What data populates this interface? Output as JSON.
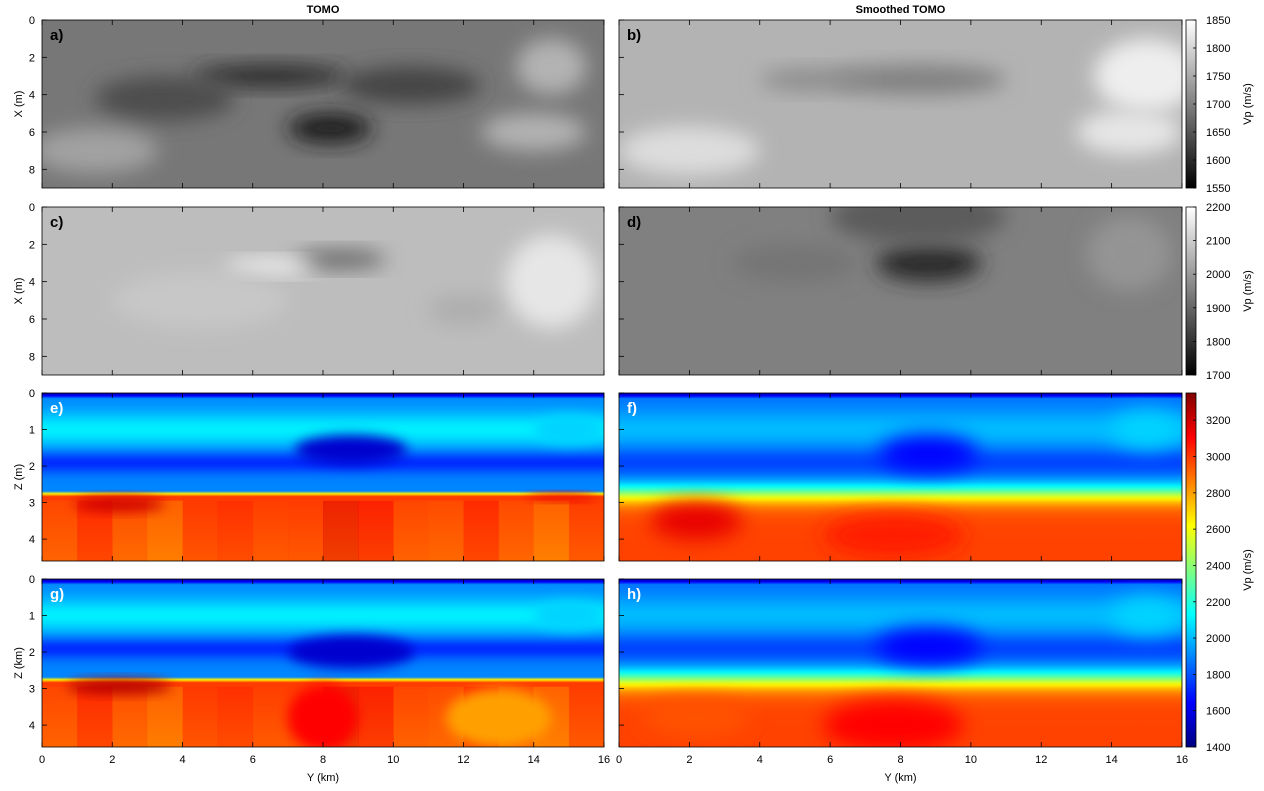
{
  "figure": {
    "col_titles": [
      "TOMO",
      "Smoothed TOMO"
    ]
  },
  "panels": [
    {
      "label": "a)",
      "ylabel": "X (m)",
      "yticks": [
        "0",
        "2",
        "4",
        "6",
        "8"
      ],
      "cmap": "gray",
      "blobs": [
        {
          "x": 6.5,
          "y": 3.0,
          "rx": 2.2,
          "ry": 0.6,
          "v": 1600
        },
        {
          "x": 8.2,
          "y": 5.8,
          "rx": 1.2,
          "ry": 0.8,
          "v": 1580
        },
        {
          "x": 3.5,
          "y": 4.2,
          "rx": 2.0,
          "ry": 1.2,
          "v": 1640
        },
        {
          "x": 10.5,
          "y": 3.5,
          "rx": 2.0,
          "ry": 1.0,
          "v": 1630
        },
        {
          "x": 14.5,
          "y": 2.5,
          "rx": 1.0,
          "ry": 1.5,
          "v": 1760
        },
        {
          "x": 1.5,
          "y": 7.0,
          "rx": 1.8,
          "ry": 1.2,
          "v": 1740
        },
        {
          "x": 14.0,
          "y": 6.0,
          "rx": 1.5,
          "ry": 1.0,
          "v": 1760
        }
      ],
      "base": 1690
    },
    {
      "label": "b)",
      "ylabel": "",
      "yticks": [],
      "cmap": "gray",
      "blobs": [
        {
          "x": 8.5,
          "y": 3.2,
          "rx": 2.5,
          "ry": 0.8,
          "v": 1700
        },
        {
          "x": 5.5,
          "y": 3.2,
          "rx": 1.5,
          "ry": 0.6,
          "v": 1715
        },
        {
          "x": 15.0,
          "y": 3.0,
          "rx": 1.5,
          "ry": 2.0,
          "v": 1830
        },
        {
          "x": 2.0,
          "y": 7.0,
          "rx": 2.0,
          "ry": 1.3,
          "v": 1810
        },
        {
          "x": 14.5,
          "y": 6.0,
          "rx": 1.5,
          "ry": 1.2,
          "v": 1820
        }
      ],
      "base": 1760
    },
    {
      "label": "c)",
      "ylabel": "X (m)",
      "yticks": [
        "0",
        "2",
        "4",
        "6",
        "8"
      ],
      "cmap": "gray2",
      "blobs": [
        {
          "x": 8.5,
          "y": 2.8,
          "rx": 1.3,
          "ry": 0.5,
          "v": 1900
        },
        {
          "x": 6.5,
          "y": 3.2,
          "rx": 1.3,
          "ry": 0.4,
          "v": 2180
        },
        {
          "x": 14.5,
          "y": 4.0,
          "rx": 1.3,
          "ry": 2.5,
          "v": 2150
        },
        {
          "x": 12.0,
          "y": 5.5,
          "rx": 1.0,
          "ry": 0.8,
          "v": 2040
        },
        {
          "x": 4.5,
          "y": 5.0,
          "rx": 2.5,
          "ry": 1.5,
          "v": 2090
        }
      ],
      "base": 2070
    },
    {
      "label": "d)",
      "ylabel": "",
      "yticks": [],
      "cmap": "gray2",
      "blobs": [
        {
          "x": 8.8,
          "y": 3.0,
          "rx": 1.5,
          "ry": 1.0,
          "v": 1780
        },
        {
          "x": 8.5,
          "y": 0.5,
          "rx": 2.5,
          "ry": 1.5,
          "v": 1880
        },
        {
          "x": 5.0,
          "y": 3.0,
          "rx": 1.8,
          "ry": 1.0,
          "v": 1930
        },
        {
          "x": 14.5,
          "y": 2.5,
          "rx": 1.2,
          "ry": 2.0,
          "v": 1990
        }
      ],
      "base": 1950
    },
    {
      "label": "e)",
      "ylabel": "Z (m)",
      "yticks": [
        "0",
        "1",
        "2",
        "3",
        "4"
      ],
      "cmap": "jet",
      "iface_sharp": true,
      "blobs": [
        {
          "x": 8.8,
          "y": 1.55,
          "rx": 1.6,
          "ry": 0.4,
          "v": 1550
        },
        {
          "x": 2.2,
          "y": 3.05,
          "rx": 1.3,
          "ry": 0.2,
          "v": 3200
        },
        {
          "x": 14.8,
          "y": 2.85,
          "rx": 1.0,
          "ry": 0.1,
          "v": 3150
        },
        {
          "x": 15.0,
          "y": 1.0,
          "rx": 1.0,
          "ry": 0.4,
          "v": 2050
        }
      ]
    },
    {
      "label": "f)",
      "ylabel": "",
      "yticks": [],
      "cmap": "jet",
      "iface_sharp": false,
      "blobs": [
        {
          "x": 8.8,
          "y": 1.65,
          "rx": 1.4,
          "ry": 0.5,
          "v": 1650
        },
        {
          "x": 2.2,
          "y": 3.5,
          "rx": 1.3,
          "ry": 0.5,
          "v": 3150
        },
        {
          "x": 7.8,
          "y": 3.9,
          "rx": 2.0,
          "ry": 0.6,
          "v": 3050
        },
        {
          "x": 15.0,
          "y": 1.0,
          "rx": 1.0,
          "ry": 0.5,
          "v": 2050
        }
      ]
    },
    {
      "label": "g)",
      "ylabel": "Z (km)",
      "yticks": [
        "0",
        "1",
        "2",
        "3",
        "4"
      ],
      "cmap": "jet",
      "iface_sharp": true,
      "blobs": [
        {
          "x": 8.8,
          "y": 2.0,
          "rx": 1.8,
          "ry": 0.45,
          "v": 1550
        },
        {
          "x": 2.2,
          "y": 2.95,
          "rx": 1.5,
          "ry": 0.2,
          "v": 3250
        },
        {
          "x": 8.0,
          "y": 3.8,
          "rx": 1.0,
          "ry": 0.9,
          "v": 3100
        },
        {
          "x": 15.0,
          "y": 1.0,
          "rx": 1.0,
          "ry": 0.4,
          "v": 2050
        },
        {
          "x": 13.0,
          "y": 3.8,
          "rx": 1.5,
          "ry": 0.8,
          "v": 2800
        }
      ]
    },
    {
      "label": "h)",
      "ylabel": "",
      "yticks": [],
      "cmap": "jet",
      "iface_sharp": false,
      "blobs": [
        {
          "x": 8.8,
          "y": 1.85,
          "rx": 1.5,
          "ry": 0.5,
          "v": 1650
        },
        {
          "x": 7.8,
          "y": 4.0,
          "rx": 2.0,
          "ry": 0.7,
          "v": 3100
        },
        {
          "x": 2.2,
          "y": 3.8,
          "rx": 1.5,
          "ry": 0.5,
          "v": 2950
        },
        {
          "x": 15.0,
          "y": 1.0,
          "rx": 1.0,
          "ry": 0.5,
          "v": 2050
        }
      ]
    }
  ],
  "colorbars": [
    {
      "label": "Vp (m/s)",
      "ticks": [
        "1850",
        "1800",
        "1750",
        "1700",
        "1650",
        "1600",
        "1550"
      ],
      "min": 1550,
      "max": 1850,
      "cmap": "gray"
    },
    {
      "label": "Vp (m/s)",
      "ticks": [
        "2200",
        "2100",
        "2000",
        "1900",
        "1800",
        "1700"
      ],
      "min": 1700,
      "max": 2200,
      "cmap": "gray2"
    },
    {
      "label": "Vp (m/s)",
      "ticks": [
        "3200",
        "3000",
        "2800",
        "2600",
        "2400",
        "2200",
        "2000",
        "1800",
        "1600",
        "1400"
      ],
      "min": 1400,
      "max": 3350,
      "cmap": "jet"
    }
  ],
  "x_axis": {
    "label": "Y (km)",
    "ticks": [
      "0",
      "2",
      "4",
      "6",
      "8",
      "10",
      "12",
      "14",
      "16"
    ],
    "range": [
      0,
      16
    ]
  }
}
